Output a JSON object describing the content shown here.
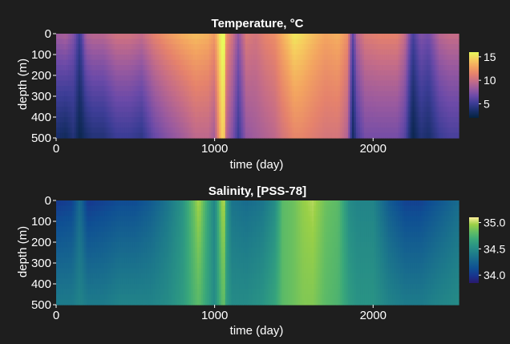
{
  "chart_data": [
    {
      "type": "heatmap",
      "title": "Temperature, °C",
      "xlabel": "time (day)",
      "ylabel": "depth (m)",
      "xlim": [
        0,
        2540
      ],
      "ylim": [
        500,
        0
      ],
      "y_reversed": true,
      "xticks": [
        0,
        1000,
        2000
      ],
      "yticks": [
        0,
        100,
        200,
        300,
        400,
        500
      ],
      "colormap": "thermal",
      "colorbar": {
        "range": [
          2,
          16
        ],
        "ticks": [
          5,
          10,
          15
        ]
      },
      "surface_profile": {
        "day": [
          0,
          60,
          110,
          150,
          190,
          230,
          300,
          380,
          460,
          540,
          620,
          700,
          800,
          880,
          960,
          1000,
          1040,
          1058,
          1075,
          1110,
          1150,
          1200,
          1260,
          1320,
          1380,
          1430,
          1470,
          1500,
          1550,
          1620,
          1700,
          1780,
          1840,
          1870,
          1900,
          1950,
          2050,
          2150,
          2200,
          2250,
          2300,
          2350,
          2420,
          2480,
          2540
        ],
        "value": [
          8.5,
          9.0,
          7.5,
          5.0,
          9.0,
          9.5,
          9.5,
          10.5,
          10.5,
          10.0,
          11.5,
          12.5,
          13.5,
          14.0,
          13.5,
          12.5,
          16.0,
          17.0,
          12.0,
          10.5,
          8.0,
          11.0,
          10.5,
          11.5,
          12.0,
          13.5,
          14.5,
          15.5,
          15.0,
          14.0,
          13.0,
          13.5,
          12.0,
          6.0,
          9.5,
          11.0,
          11.5,
          11.5,
          10.0,
          5.5,
          7.5,
          7.0,
          9.5,
          10.0,
          10.0
        ]
      },
      "bottom_profile": {
        "day": [
          0,
          60,
          110,
          150,
          190,
          230,
          300,
          380,
          460,
          540,
          620,
          700,
          800,
          880,
          960,
          1000,
          1040,
          1058,
          1075,
          1110,
          1150,
          1200,
          1260,
          1320,
          1380,
          1430,
          1470,
          1500,
          1550,
          1620,
          1700,
          1780,
          1840,
          1870,
          1900,
          1950,
          2050,
          2150,
          2200,
          2250,
          2300,
          2350,
          2420,
          2480,
          2540
        ],
        "value": [
          3.5,
          3.0,
          4.0,
          2.5,
          3.5,
          4.0,
          4.0,
          5.0,
          5.0,
          4.5,
          6.5,
          7.5,
          8.5,
          9.5,
          9.5,
          8.5,
          14.0,
          15.0,
          9.0,
          7.5,
          5.0,
          8.0,
          8.5,
          9.0,
          9.5,
          10.5,
          11.0,
          11.5,
          11.5,
          11.0,
          10.5,
          10.5,
          9.0,
          3.0,
          5.5,
          7.0,
          7.0,
          7.0,
          6.0,
          2.5,
          4.0,
          3.5,
          5.0,
          5.5,
          5.5
        ]
      }
    },
    {
      "type": "heatmap",
      "title": "Salinity, [PSS-78]",
      "xlabel": "time (day)",
      "ylabel": "depth (m)",
      "xlim": [
        0,
        2540
      ],
      "ylim": [
        500,
        0
      ],
      "y_reversed": true,
      "xticks": [
        0,
        1000,
        2000
      ],
      "yticks": [
        0,
        100,
        200,
        300,
        400,
        500
      ],
      "colormap": "haline",
      "colorbar": {
        "range": [
          33.85,
          35.1
        ],
        "ticks": [
          "35.0",
          "34.5",
          "34.0"
        ]
      },
      "surface_profile": {
        "day": [
          0,
          100,
          150,
          200,
          300,
          400,
          500,
          600,
          700,
          800,
          870,
          900,
          950,
          1000,
          1040,
          1058,
          1075,
          1110,
          1200,
          1300,
          1380,
          1430,
          1500,
          1560,
          1620,
          1700,
          1780,
          1850,
          1900,
          2000,
          2100,
          2200,
          2300,
          2400,
          2540
        ],
        "value": [
          34.0,
          34.05,
          34.3,
          34.0,
          34.05,
          34.1,
          34.1,
          34.2,
          34.35,
          34.55,
          34.85,
          35.0,
          34.7,
          34.45,
          34.9,
          35.05,
          34.6,
          34.35,
          34.3,
          34.35,
          34.5,
          34.8,
          34.85,
          34.95,
          35.0,
          34.85,
          34.8,
          34.5,
          34.45,
          34.45,
          34.2,
          34.05,
          34.05,
          34.15,
          34.3
        ]
      },
      "bottom_profile": {
        "day": [
          0,
          100,
          150,
          200,
          300,
          400,
          500,
          600,
          700,
          800,
          870,
          900,
          950,
          1000,
          1040,
          1058,
          1075,
          1110,
          1200,
          1300,
          1380,
          1430,
          1500,
          1560,
          1620,
          1700,
          1780,
          1850,
          1900,
          2000,
          2100,
          2200,
          2300,
          2400,
          2540
        ],
        "value": [
          34.4,
          34.4,
          34.45,
          34.4,
          34.4,
          34.45,
          34.45,
          34.45,
          34.5,
          34.6,
          34.75,
          34.8,
          34.65,
          34.5,
          34.75,
          34.85,
          34.6,
          34.5,
          34.5,
          34.55,
          34.65,
          34.8,
          34.85,
          34.9,
          34.9,
          34.8,
          34.75,
          34.6,
          34.55,
          34.55,
          34.45,
          34.4,
          34.4,
          34.45,
          34.5
        ]
      }
    }
  ]
}
